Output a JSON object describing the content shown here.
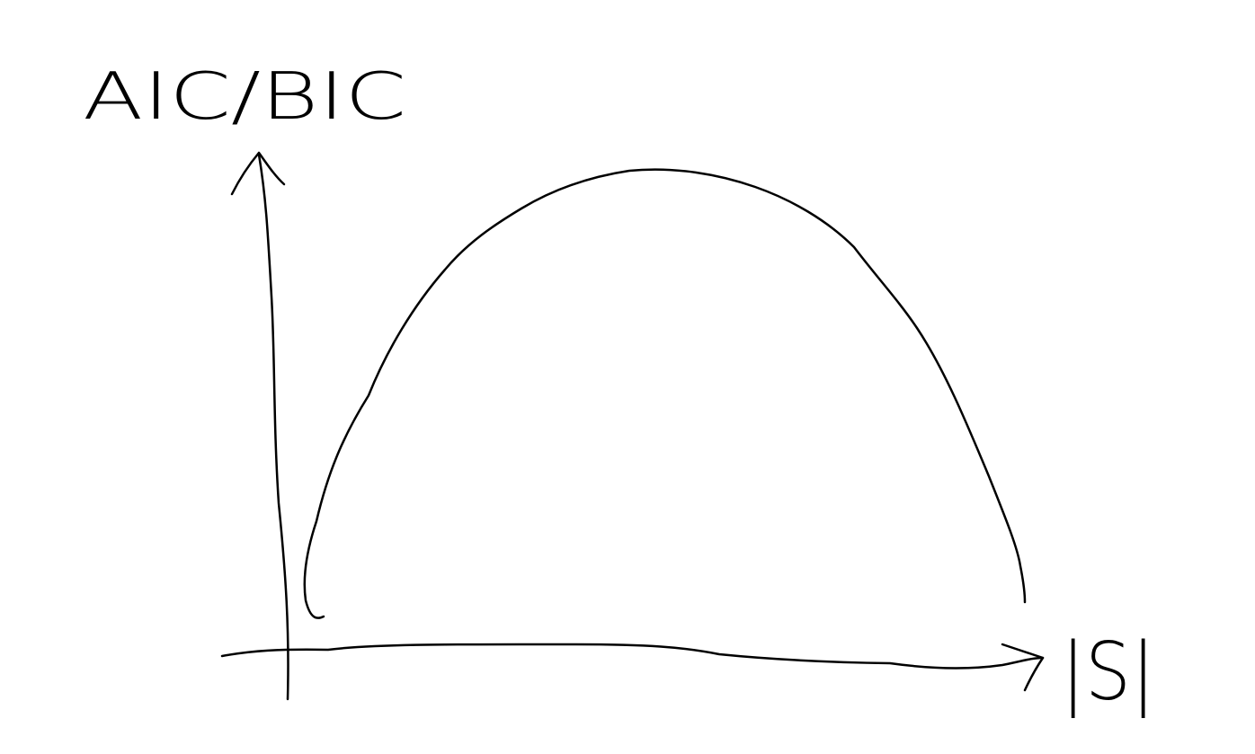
{
  "y_axis": {
    "label": "AIC/BIC"
  },
  "x_axis": {
    "label": "|S|"
  }
}
